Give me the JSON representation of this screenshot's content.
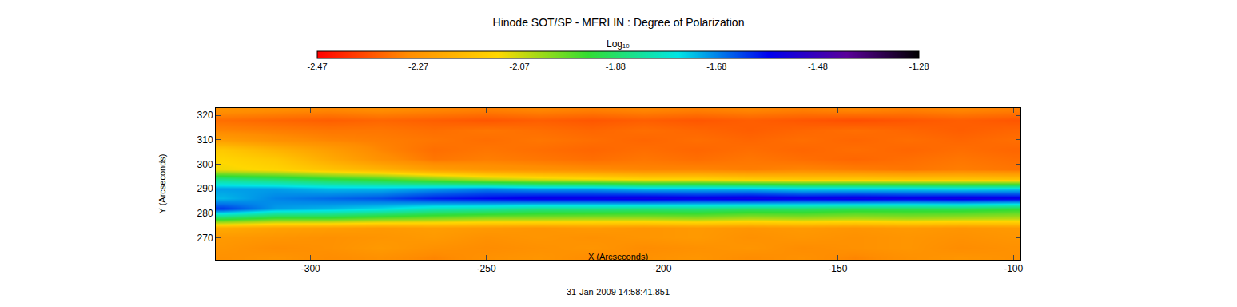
{
  "chart_data": {
    "type": "heatmap",
    "title": "Hinode SOT/SP - MERLIN : Degree of Polarization",
    "x_label": "X (Arcseconds)",
    "y_label": "Y (Arcseconds)",
    "annotation": "31-Jan-2009 14:58:41.851",
    "colorbar_title": "Log₁₀",
    "zlim": [
      -2.47,
      -1.28
    ],
    "zticks": [
      -2.47,
      -2.27,
      -2.07,
      -1.88,
      -1.68,
      -1.48,
      -1.28
    ],
    "xlim": [
      -327,
      -98
    ],
    "ylim": [
      261,
      323
    ],
    "xticks": [
      -300,
      -250,
      -200,
      -150,
      -100
    ],
    "yticks": [
      270,
      280,
      290,
      300,
      310,
      320
    ],
    "x": [
      -325,
      -310,
      -295,
      -280,
      -265,
      -250,
      -235,
      -220,
      -205,
      -190,
      -175,
      -160,
      -145,
      -130,
      -115,
      -100
    ],
    "y": [
      262,
      266,
      270,
      274,
      278,
      282,
      286,
      290,
      294,
      298,
      302,
      306,
      310,
      314,
      318,
      322
    ],
    "z": [
      [
        -2.28,
        -2.27,
        -2.29,
        -2.28,
        -2.3,
        -2.28,
        -2.27,
        -2.29,
        -2.28,
        -2.27,
        -2.29,
        -2.28,
        -2.3,
        -2.28,
        -2.27,
        -2.28
      ],
      [
        -2.27,
        -2.29,
        -2.28,
        -2.26,
        -2.28,
        -2.29,
        -2.28,
        -2.27,
        -2.29,
        -2.28,
        -2.27,
        -2.29,
        -2.28,
        -2.27,
        -2.29,
        -2.28
      ],
      [
        -2.26,
        -2.27,
        -2.28,
        -2.27,
        -2.26,
        -2.28,
        -2.27,
        -2.28,
        -2.27,
        -2.26,
        -2.28,
        -2.27,
        -2.28,
        -2.27,
        -2.28,
        -2.27
      ],
      [
        -2.22,
        -2.24,
        -2.25,
        -2.26,
        -2.25,
        -2.26,
        -2.27,
        -2.26,
        -2.27,
        -2.26,
        -2.27,
        -2.26,
        -2.27,
        -2.26,
        -2.27,
        -2.26
      ],
      [
        -1.9,
        -1.95,
        -1.95,
        -1.98,
        -2.0,
        -2.02,
        -2.02,
        -2.03,
        -2.03,
        -2.02,
        -2.04,
        -2.03,
        -2.04,
        -2.03,
        -2.04,
        -2.05
      ],
      [
        -1.62,
        -1.7,
        -1.72,
        -1.75,
        -1.8,
        -1.82,
        -1.85,
        -1.85,
        -1.86,
        -1.86,
        -1.88,
        -1.88,
        -1.9,
        -1.9,
        -1.9,
        -1.92
      ],
      [
        -1.72,
        -1.68,
        -1.66,
        -1.64,
        -1.6,
        -1.58,
        -1.56,
        -1.56,
        -1.55,
        -1.56,
        -1.55,
        -1.56,
        -1.55,
        -1.56,
        -1.55,
        -1.56
      ],
      [
        -1.7,
        -1.7,
        -1.72,
        -1.72,
        -1.7,
        -1.68,
        -1.7,
        -1.7,
        -1.72,
        -1.72,
        -1.72,
        -1.74,
        -1.74,
        -1.74,
        -1.75,
        -1.74
      ],
      [
        -1.85,
        -1.88,
        -1.92,
        -1.95,
        -2.0,
        -2.05,
        -2.08,
        -2.1,
        -2.12,
        -2.12,
        -2.14,
        -2.15,
        -2.15,
        -2.16,
        -2.16,
        -2.17
      ],
      [
        -2.1,
        -2.12,
        -2.16,
        -2.2,
        -2.25,
        -2.27,
        -2.28,
        -2.29,
        -2.3,
        -2.3,
        -2.31,
        -2.3,
        -2.31,
        -2.32,
        -2.31,
        -2.32
      ],
      [
        -2.12,
        -2.15,
        -2.22,
        -2.28,
        -2.32,
        -2.31,
        -2.32,
        -2.33,
        -2.32,
        -2.33,
        -2.32,
        -2.33,
        -2.34,
        -2.33,
        -2.32,
        -2.33
      ],
      [
        -2.15,
        -2.2,
        -2.25,
        -2.3,
        -2.33,
        -2.32,
        -2.33,
        -2.34,
        -2.33,
        -2.34,
        -2.33,
        -2.34,
        -2.33,
        -2.34,
        -2.33,
        -2.34
      ],
      [
        -2.25,
        -2.28,
        -2.3,
        -2.31,
        -2.32,
        -2.33,
        -2.32,
        -2.33,
        -2.34,
        -2.33,
        -2.34,
        -2.33,
        -2.34,
        -2.33,
        -2.34,
        -2.33
      ],
      [
        -2.3,
        -2.31,
        -2.32,
        -2.32,
        -2.33,
        -2.32,
        -2.33,
        -2.34,
        -2.33,
        -2.34,
        -2.35,
        -2.34,
        -2.33,
        -2.34,
        -2.35,
        -2.34
      ],
      [
        -2.33,
        -2.34,
        -2.35,
        -2.34,
        -2.35,
        -2.36,
        -2.35,
        -2.36,
        -2.35,
        -2.36,
        -2.35,
        -2.36,
        -2.37,
        -2.36,
        -2.35,
        -2.36
      ],
      [
        -2.28,
        -2.29,
        -2.3,
        -2.29,
        -2.3,
        -2.31,
        -2.3,
        -2.31,
        -2.3,
        -2.31,
        -2.3,
        -2.31,
        -2.3,
        -2.31,
        -2.3,
        -2.31
      ]
    ]
  }
}
